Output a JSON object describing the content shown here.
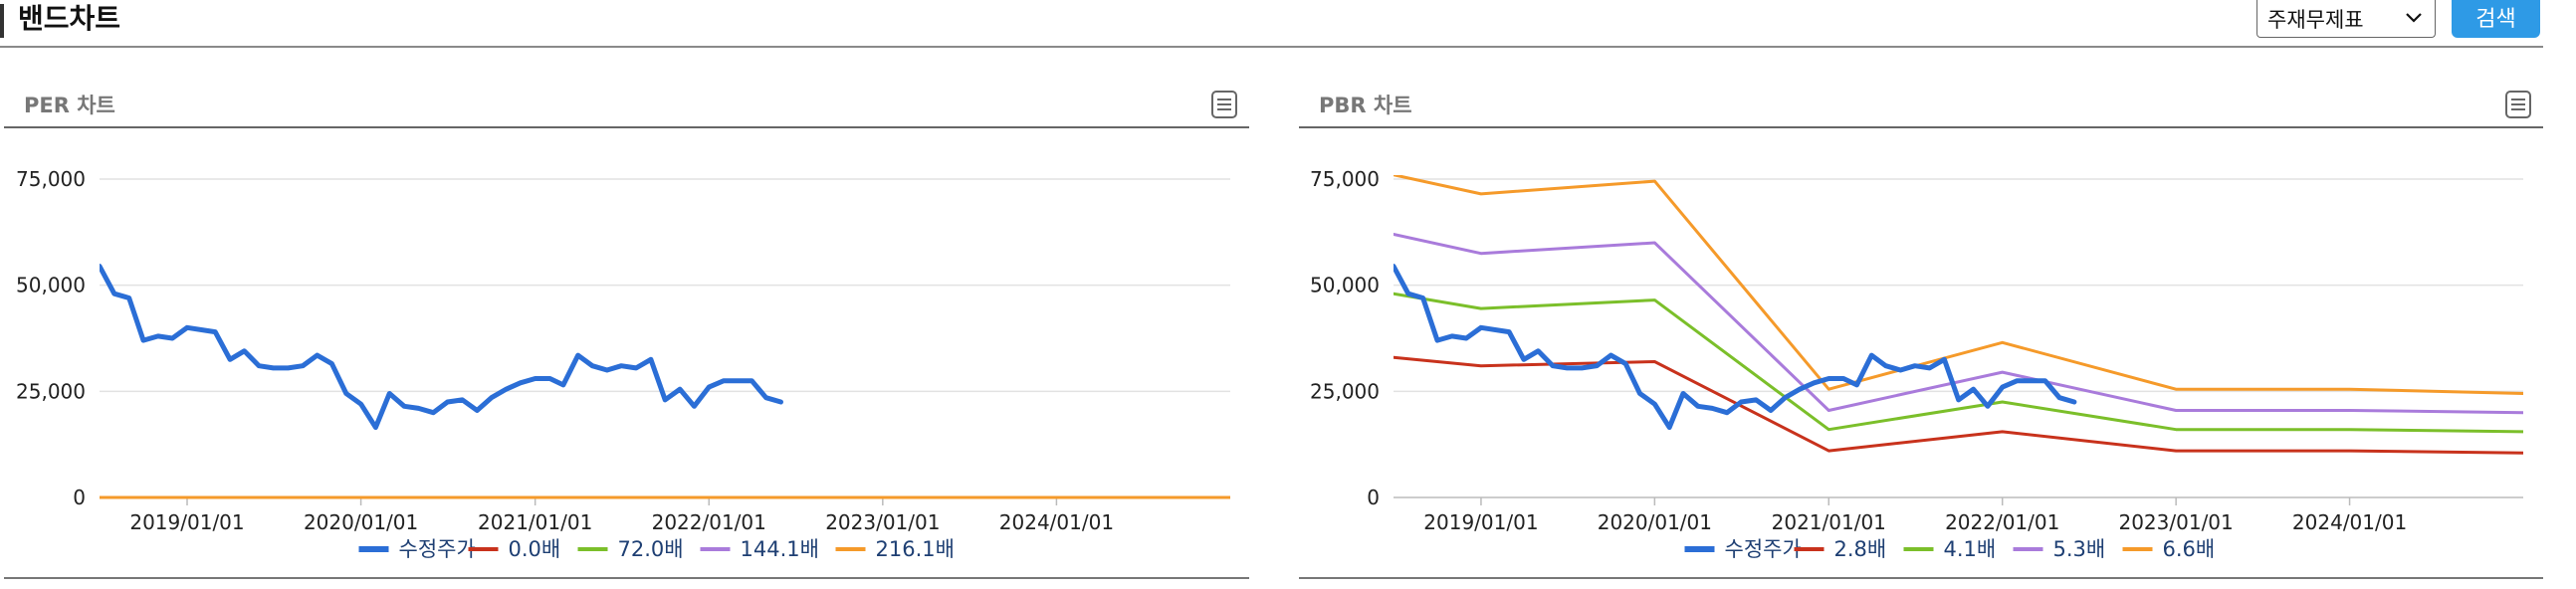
{
  "header": {
    "title": "밴드차트",
    "select_value": "주재무제표",
    "search_label": "검색"
  },
  "panels": [
    {
      "title": "PER 차트"
    },
    {
      "title": "PBR 차트"
    }
  ],
  "chart_data": [
    {
      "type": "line",
      "title": "PER 차트",
      "xlim": [
        "2018-07-01",
        "2024-12-31"
      ],
      "ylim": [
        0,
        75000
      ],
      "x_ticks": [
        "2019/01/01",
        "2020/01/01",
        "2021/01/01",
        "2022/01/01",
        "2023/01/01",
        "2024/01/01"
      ],
      "y_ticks": [
        "0",
        "25,000",
        "50,000",
        "75,000"
      ],
      "grid": true,
      "legend_position": "bottom",
      "series": [
        {
          "name": "수정주가",
          "color": "#2b6ed6",
          "x": [
            "2018-07-01",
            "2018-08-01",
            "2018-09-01",
            "2018-10-01",
            "2018-11-01",
            "2018-12-01",
            "2019-01-01",
            "2019-03-01",
            "2019-04-01",
            "2019-05-01",
            "2019-06-01",
            "2019-07-01",
            "2019-08-01",
            "2019-09-01",
            "2019-10-01",
            "2019-11-01",
            "2019-12-01",
            "2020-01-01",
            "2020-02-01",
            "2020-03-01",
            "2020-04-01",
            "2020-05-01",
            "2020-06-01",
            "2020-07-01",
            "2020-08-01",
            "2020-09-01",
            "2020-10-01",
            "2020-11-01",
            "2020-12-01",
            "2021-01-01",
            "2021-02-01",
            "2021-03-01",
            "2021-04-01",
            "2021-05-01",
            "2021-06-01",
            "2021-07-01",
            "2021-08-01",
            "2021-09-01",
            "2021-10-01",
            "2021-11-01",
            "2021-12-01",
            "2022-01-01",
            "2022-02-01",
            "2022-03-01",
            "2022-04-01",
            "2022-05-01",
            "2022-06-01",
            "2022-07-01",
            "2022-08-01"
          ],
          "y": [
            54500,
            48000,
            47000,
            37000,
            38000,
            37500,
            40000,
            39000,
            32500,
            34500,
            31000,
            30500,
            30500,
            31000,
            33500,
            31500,
            24500,
            22000,
            16500,
            24500,
            21500,
            21000,
            20000,
            22500,
            23000,
            20500,
            23500,
            25500,
            27000,
            28000,
            28000,
            26500,
            33500,
            31000,
            30000,
            31000,
            30500,
            32500,
            23000,
            25500,
            21500,
            26000,
            27500,
            27500,
            27500,
            23500,
            22500,
            null,
            null
          ]
        },
        {
          "name": "0.0배",
          "color": "#c8321c",
          "x": [
            "2018-07-01",
            "2024-12-31"
          ],
          "y": [
            0,
            0
          ]
        },
        {
          "name": "72.0배",
          "color": "#7bbf2a",
          "x": [
            "2018-07-01",
            "2024-12-31"
          ],
          "y": [
            0,
            0
          ]
        },
        {
          "name": "144.1배",
          "color": "#a97bdb",
          "x": [
            "2018-07-01",
            "2024-12-31"
          ],
          "y": [
            0,
            0
          ]
        },
        {
          "name": "216.1배",
          "color": "#f59a2a",
          "x": [
            "2018-07-01",
            "2024-12-31"
          ],
          "y": [
            0,
            0
          ]
        }
      ]
    },
    {
      "type": "line",
      "title": "PBR 차트",
      "xlim": [
        "2018-07-01",
        "2024-12-31"
      ],
      "ylim": [
        0,
        75000
      ],
      "x_ticks": [
        "2019/01/01",
        "2020/01/01",
        "2021/01/01",
        "2022/01/01",
        "2023/01/01",
        "2024/01/01"
      ],
      "y_ticks": [
        "0",
        "25,000",
        "50,000",
        "75,000"
      ],
      "grid": true,
      "legend_position": "bottom",
      "series": [
        {
          "name": "수정주가",
          "color": "#2b6ed6",
          "x": [
            "2018-07-01",
            "2018-08-01",
            "2018-09-01",
            "2018-10-01",
            "2018-11-01",
            "2018-12-01",
            "2019-01-01",
            "2019-03-01",
            "2019-04-01",
            "2019-05-01",
            "2019-06-01",
            "2019-07-01",
            "2019-08-01",
            "2019-09-01",
            "2019-10-01",
            "2019-11-01",
            "2019-12-01",
            "2020-01-01",
            "2020-02-01",
            "2020-03-01",
            "2020-04-01",
            "2020-05-01",
            "2020-06-01",
            "2020-07-01",
            "2020-08-01",
            "2020-09-01",
            "2020-10-01",
            "2020-11-01",
            "2020-12-01",
            "2021-01-01",
            "2021-02-01",
            "2021-03-01",
            "2021-04-01",
            "2021-05-01",
            "2021-06-01",
            "2021-07-01",
            "2021-08-01",
            "2021-09-01",
            "2021-10-01",
            "2021-11-01",
            "2021-12-01",
            "2022-01-01",
            "2022-02-01",
            "2022-03-01",
            "2022-04-01",
            "2022-05-01",
            "2022-06-01",
            "2022-07-01",
            "2022-08-01"
          ],
          "y": [
            54500,
            48000,
            47000,
            37000,
            38000,
            37500,
            40000,
            39000,
            32500,
            34500,
            31000,
            30500,
            30500,
            31000,
            33500,
            31500,
            24500,
            22000,
            16500,
            24500,
            21500,
            21000,
            20000,
            22500,
            23000,
            20500,
            23500,
            25500,
            27000,
            28000,
            28000,
            26500,
            33500,
            31000,
            30000,
            31000,
            30500,
            32500,
            23000,
            25500,
            21500,
            26000,
            27500,
            27500,
            27500,
            23500,
            22500,
            null,
            null
          ]
        },
        {
          "name": "2.8배",
          "color": "#c8321c",
          "x": [
            "2018-07-01",
            "2019-01-01",
            "2020-01-01",
            "2021-01-01",
            "2022-01-01",
            "2023-01-01",
            "2024-01-01",
            "2024-12-31"
          ],
          "y": [
            33000,
            31000,
            32000,
            11000,
            15500,
            11000,
            11000,
            10500
          ]
        },
        {
          "name": "4.1배",
          "color": "#7bbf2a",
          "x": [
            "2018-07-01",
            "2019-01-01",
            "2020-01-01",
            "2021-01-01",
            "2022-01-01",
            "2023-01-01",
            "2024-01-01",
            "2024-12-31"
          ],
          "y": [
            48000,
            44500,
            46500,
            16000,
            22500,
            16000,
            16000,
            15500
          ]
        },
        {
          "name": "5.3배",
          "color": "#a97bdb",
          "x": [
            "2018-07-01",
            "2019-01-01",
            "2020-01-01",
            "2021-01-01",
            "2022-01-01",
            "2023-01-01",
            "2024-01-01",
            "2024-12-31"
          ],
          "y": [
            62000,
            57500,
            60000,
            20500,
            29500,
            20500,
            20500,
            20000
          ]
        },
        {
          "name": "6.6배",
          "color": "#f59a2a",
          "x": [
            "2018-07-01",
            "2019-01-01",
            "2020-01-01",
            "2021-01-01",
            "2022-01-01",
            "2023-01-01",
            "2024-01-01",
            "2024-12-31"
          ],
          "y": [
            76000,
            71500,
            74500,
            25500,
            36500,
            25500,
            25500,
            24500
          ]
        }
      ]
    }
  ]
}
